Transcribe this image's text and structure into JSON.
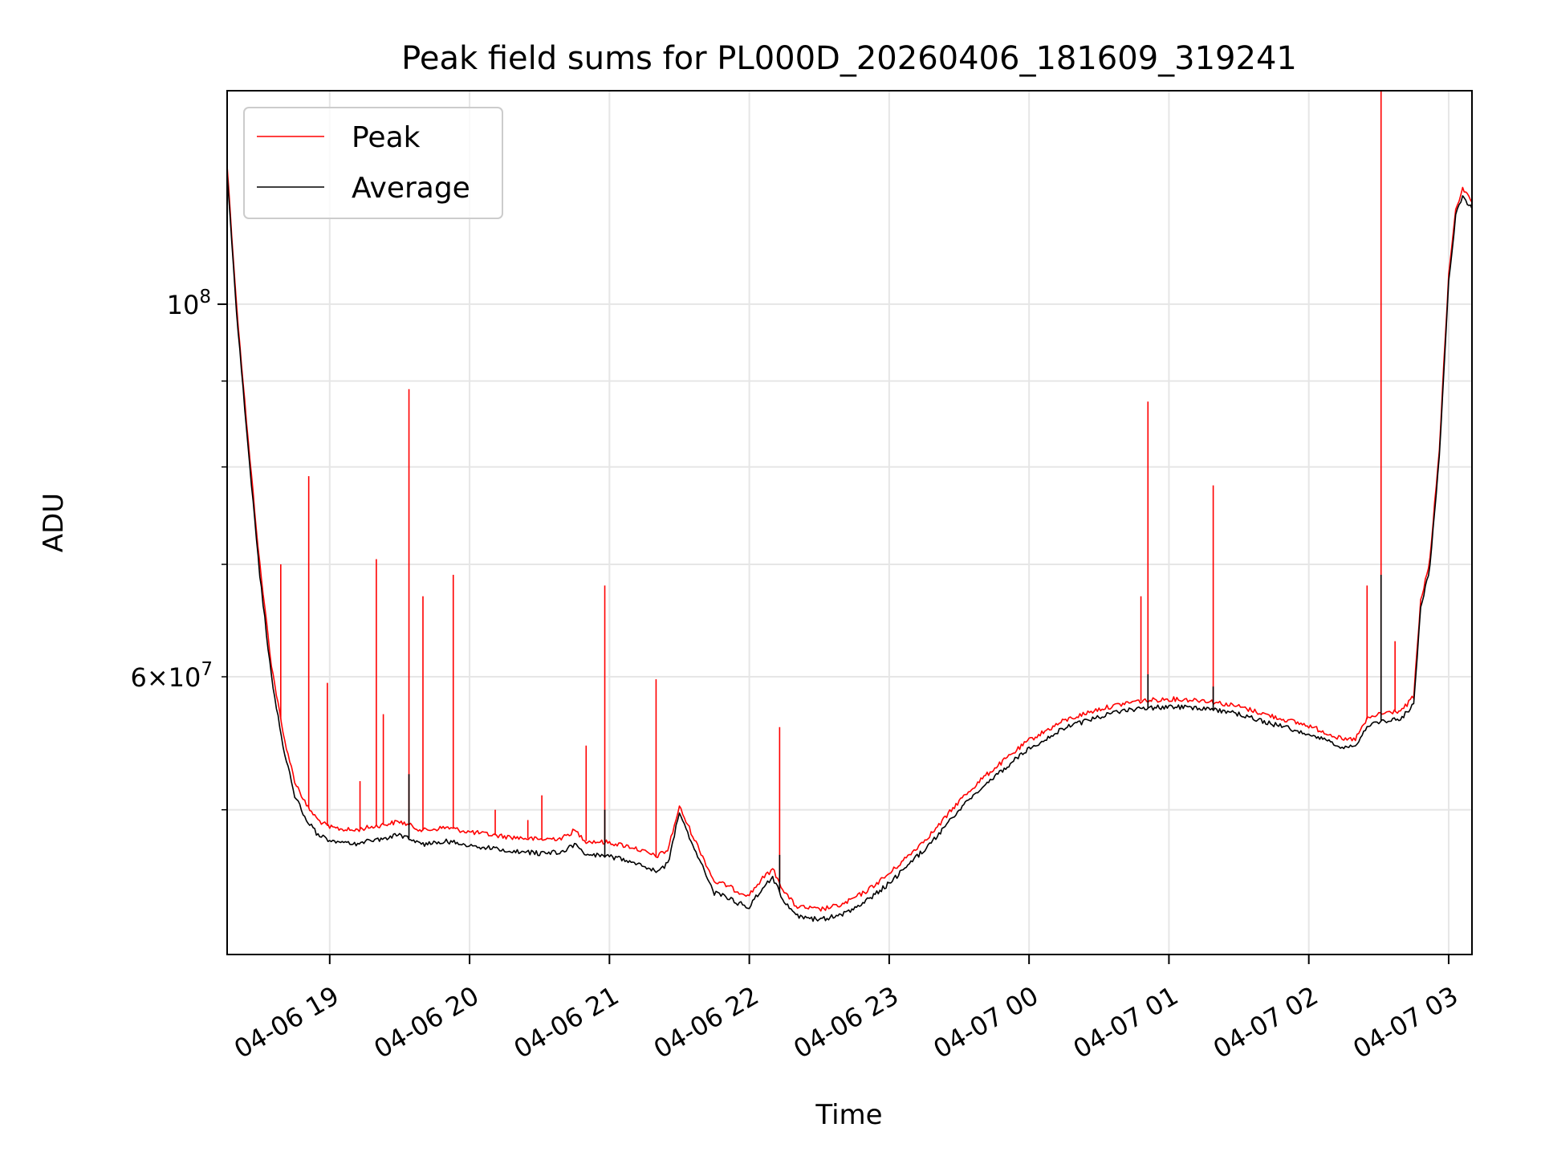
{
  "chart_data": {
    "type": "line",
    "title": "Peak field sums for PL000D_20260406_181609_319241",
    "xlabel": "Time",
    "ylabel": "ADU",
    "yscale": "log",
    "xlim": [
      "2026-04-06 18:16",
      "2026-04-07 03:10"
    ],
    "ylim": [
      41000000,
      134000000
    ],
    "grid": true,
    "legend_position": "top-left",
    "x_ticks": [
      {
        "t": "2026-04-06 19:00",
        "label": "04-06 19"
      },
      {
        "t": "2026-04-06 20:00",
        "label": "04-06 20"
      },
      {
        "t": "2026-04-06 21:00",
        "label": "04-06 21"
      },
      {
        "t": "2026-04-06 22:00",
        "label": "04-06 22"
      },
      {
        "t": "2026-04-06 23:00",
        "label": "04-06 23"
      },
      {
        "t": "2026-04-07 00:00",
        "label": "04-07 00"
      },
      {
        "t": "2026-04-07 01:00",
        "label": "04-07 01"
      },
      {
        "t": "2026-04-07 02:00",
        "label": "04-07 02"
      },
      {
        "t": "2026-04-07 03:00",
        "label": "04-07 03"
      }
    ],
    "y_ticks_major": [
      {
        "v": 100000000,
        "base": "10",
        "exp": "8"
      }
    ],
    "y_ticks_labeled_minor": [
      {
        "v": 60000000,
        "mant": "6",
        "base": "10",
        "exp": "7"
      }
    ],
    "y_ticks_minor": [
      50000000,
      70000000,
      80000000,
      90000000
    ],
    "series": [
      {
        "name": "Peak",
        "color": "#ff0000",
        "points": [
          [
            "2026-04-06 18:16",
            121000000
          ],
          [
            "2026-04-06 18:20",
            100000000
          ],
          [
            "2026-04-06 18:25",
            83000000
          ],
          [
            "2026-04-06 18:30",
            70000000
          ],
          [
            "2026-04-06 18:35",
            61000000
          ],
          [
            "2026-04-06 18:40",
            55500000
          ],
          [
            "2026-04-06 18:45",
            52000000
          ],
          [
            "2026-04-06 18:50",
            50300000
          ],
          [
            "2026-04-06 18:55",
            49300000
          ],
          [
            "2026-04-06 19:00",
            48800000
          ],
          [
            "2026-04-06 19:10",
            48600000
          ],
          [
            "2026-04-06 19:20",
            48900000
          ],
          [
            "2026-04-06 19:30",
            49200000
          ],
          [
            "2026-04-06 19:40",
            48600000
          ],
          [
            "2026-04-06 19:50",
            48800000
          ],
          [
            "2026-04-06 20:00",
            48500000
          ],
          [
            "2026-04-06 20:15",
            48200000
          ],
          [
            "2026-04-06 20:30",
            48000000
          ],
          [
            "2026-04-06 20:40",
            48100000
          ],
          [
            "2026-04-06 20:45",
            48600000
          ],
          [
            "2026-04-06 20:50",
            47900000
          ],
          [
            "2026-04-06 21:00",
            47800000
          ],
          [
            "2026-04-06 21:10",
            47500000
          ],
          [
            "2026-04-06 21:20",
            46900000
          ],
          [
            "2026-04-06 21:25",
            47300000
          ],
          [
            "2026-04-06 21:30",
            50200000
          ],
          [
            "2026-04-06 21:35",
            48500000
          ],
          [
            "2026-04-06 21:40",
            46900000
          ],
          [
            "2026-04-06 21:45",
            45300000
          ],
          [
            "2026-04-06 21:50",
            45100000
          ],
          [
            "2026-04-06 21:55",
            44700000
          ],
          [
            "2026-04-06 22:00",
            44500000
          ],
          [
            "2026-04-06 22:05",
            45400000
          ],
          [
            "2026-04-06 22:10",
            46100000
          ],
          [
            "2026-04-06 22:15",
            44700000
          ],
          [
            "2026-04-06 22:20",
            43800000
          ],
          [
            "2026-04-06 22:30",
            43600000
          ],
          [
            "2026-04-06 22:40",
            43900000
          ],
          [
            "2026-04-06 22:50",
            44700000
          ],
          [
            "2026-04-06 23:00",
            45800000
          ],
          [
            "2026-04-06 23:10",
            47200000
          ],
          [
            "2026-04-06 23:20",
            48700000
          ],
          [
            "2026-04-06 23:30",
            50600000
          ],
          [
            "2026-04-06 23:40",
            52200000
          ],
          [
            "2026-04-06 23:50",
            53600000
          ],
          [
            "2026-04-07 00:00",
            55000000
          ],
          [
            "2026-04-07 00:15",
            56500000
          ],
          [
            "2026-04-07 00:30",
            57400000
          ],
          [
            "2026-04-07 00:45",
            58000000
          ],
          [
            "2026-04-07 01:00",
            58200000
          ],
          [
            "2026-04-07 01:15",
            58100000
          ],
          [
            "2026-04-07 01:30",
            57600000
          ],
          [
            "2026-04-07 01:45",
            56800000
          ],
          [
            "2026-04-07 02:00",
            56100000
          ],
          [
            "2026-04-07 02:10",
            55400000
          ],
          [
            "2026-04-07 02:15",
            55000000
          ],
          [
            "2026-04-07 02:20",
            55100000
          ],
          [
            "2026-04-07 02:25",
            56600000
          ],
          [
            "2026-04-07 02:30",
            57000000
          ],
          [
            "2026-04-07 02:40",
            57300000
          ],
          [
            "2026-04-07 02:45",
            58400000
          ],
          [
            "2026-04-07 02:48",
            66500000
          ],
          [
            "2026-04-07 02:52",
            70500000
          ],
          [
            "2026-04-07 02:56",
            82000000
          ],
          [
            "2026-04-07 03:00",
            104000000
          ],
          [
            "2026-04-07 03:03",
            114000000
          ],
          [
            "2026-04-07 03:06",
            117000000
          ],
          [
            "2026-04-07 03:08",
            116000000
          ],
          [
            "2026-04-07 03:10",
            115000000
          ]
        ],
        "spikes": [
          [
            "2026-04-06 18:39",
            70000000
          ],
          [
            "2026-04-06 18:51",
            79000000
          ],
          [
            "2026-04-06 18:59",
            59500000
          ],
          [
            "2026-04-06 19:13",
            52000000
          ],
          [
            "2026-04-06 19:20",
            70500000
          ],
          [
            "2026-04-06 19:23",
            57000000
          ],
          [
            "2026-04-06 19:34",
            89000000
          ],
          [
            "2026-04-06 19:40",
            67000000
          ],
          [
            "2026-04-06 19:53",
            69000000
          ],
          [
            "2026-04-06 20:11",
            50000000
          ],
          [
            "2026-04-06 20:25",
            49300000
          ],
          [
            "2026-04-06 20:31",
            51000000
          ],
          [
            "2026-04-06 20:50",
            54600000
          ],
          [
            "2026-04-06 20:58",
            68000000
          ],
          [
            "2026-04-06 21:20",
            59800000
          ],
          [
            "2026-04-06 22:13",
            56000000
          ],
          [
            "2026-04-07 00:48",
            67000000
          ],
          [
            "2026-04-07 00:51",
            87500000
          ],
          [
            "2026-04-07 01:19",
            78000000
          ],
          [
            "2026-04-07 02:25",
            68000000
          ],
          [
            "2026-04-07 02:31",
            134000000
          ],
          [
            "2026-04-07 02:37",
            63000000
          ]
        ]
      },
      {
        "name": "Average",
        "color": "#000000",
        "points": [
          [
            "2026-04-06 18:16",
            120000000
          ],
          [
            "2026-04-06 18:20",
            99000000
          ],
          [
            "2026-04-06 18:25",
            82000000
          ],
          [
            "2026-04-06 18:30",
            69000000
          ],
          [
            "2026-04-06 18:35",
            60000000
          ],
          [
            "2026-04-06 18:40",
            54500000
          ],
          [
            "2026-04-06 18:45",
            51000000
          ],
          [
            "2026-04-06 18:50",
            49300000
          ],
          [
            "2026-04-06 18:55",
            48300000
          ],
          [
            "2026-04-06 19:00",
            47900000
          ],
          [
            "2026-04-06 19:10",
            47700000
          ],
          [
            "2026-04-06 19:20",
            48000000
          ],
          [
            "2026-04-06 19:30",
            48300000
          ],
          [
            "2026-04-06 19:40",
            47700000
          ],
          [
            "2026-04-06 19:50",
            47900000
          ],
          [
            "2026-04-06 20:00",
            47600000
          ],
          [
            "2026-04-06 20:15",
            47300000
          ],
          [
            "2026-04-06 20:30",
            47100000
          ],
          [
            "2026-04-06 20:40",
            47200000
          ],
          [
            "2026-04-06 20:45",
            47700000
          ],
          [
            "2026-04-06 20:50",
            47000000
          ],
          [
            "2026-04-06 21:00",
            46900000
          ],
          [
            "2026-04-06 21:10",
            46600000
          ],
          [
            "2026-04-06 21:20",
            46000000
          ],
          [
            "2026-04-06 21:25",
            46400000
          ],
          [
            "2026-04-06 21:30",
            49800000
          ],
          [
            "2026-04-06 21:35",
            47900000
          ],
          [
            "2026-04-06 21:40",
            46200000
          ],
          [
            "2026-04-06 21:45",
            44600000
          ],
          [
            "2026-04-06 21:50",
            44400000
          ],
          [
            "2026-04-06 21:55",
            44000000
          ],
          [
            "2026-04-06 22:00",
            43800000
          ],
          [
            "2026-04-06 22:05",
            44800000
          ],
          [
            "2026-04-06 22:10",
            45500000
          ],
          [
            "2026-04-06 22:15",
            44100000
          ],
          [
            "2026-04-06 22:20",
            43200000
          ],
          [
            "2026-04-06 22:30",
            43000000
          ],
          [
            "2026-04-06 22:40",
            43300000
          ],
          [
            "2026-04-06 22:50",
            44100000
          ],
          [
            "2026-04-06 23:00",
            45200000
          ],
          [
            "2026-04-06 23:10",
            46600000
          ],
          [
            "2026-04-06 23:20",
            48100000
          ],
          [
            "2026-04-06 23:30",
            50000000
          ],
          [
            "2026-04-06 23:40",
            51600000
          ],
          [
            "2026-04-06 23:50",
            53000000
          ],
          [
            "2026-04-07 00:00",
            54400000
          ],
          [
            "2026-04-07 00:15",
            55900000
          ],
          [
            "2026-04-07 00:30",
            56800000
          ],
          [
            "2026-04-07 00:45",
            57400000
          ],
          [
            "2026-04-07 01:00",
            57600000
          ],
          [
            "2026-04-07 01:15",
            57500000
          ],
          [
            "2026-04-07 01:30",
            57000000
          ],
          [
            "2026-04-07 01:45",
            56200000
          ],
          [
            "2026-04-07 02:00",
            55500000
          ],
          [
            "2026-04-07 02:10",
            54800000
          ],
          [
            "2026-04-07 02:15",
            54400000
          ],
          [
            "2026-04-07 02:20",
            54500000
          ],
          [
            "2026-04-07 02:25",
            56000000
          ],
          [
            "2026-04-07 02:30",
            56400000
          ],
          [
            "2026-04-07 02:40",
            56700000
          ],
          [
            "2026-04-07 02:45",
            57800000
          ],
          [
            "2026-04-07 02:48",
            65800000
          ],
          [
            "2026-04-07 02:52",
            69800000
          ],
          [
            "2026-04-07 02:56",
            81200000
          ],
          [
            "2026-04-07 03:00",
            103000000
          ],
          [
            "2026-04-07 03:03",
            113000000
          ],
          [
            "2026-04-07 03:06",
            116000000
          ],
          [
            "2026-04-07 03:08",
            115000000
          ],
          [
            "2026-04-07 03:10",
            114000000
          ]
        ],
        "spikes": [
          [
            "2026-04-06 19:34",
            52500000
          ],
          [
            "2026-04-06 20:58",
            50000000
          ],
          [
            "2026-04-06 22:13",
            47000000
          ],
          [
            "2026-04-07 00:51",
            60200000
          ],
          [
            "2026-04-07 01:19",
            59200000
          ],
          [
            "2026-04-07 02:31",
            69000000
          ]
        ]
      }
    ]
  }
}
